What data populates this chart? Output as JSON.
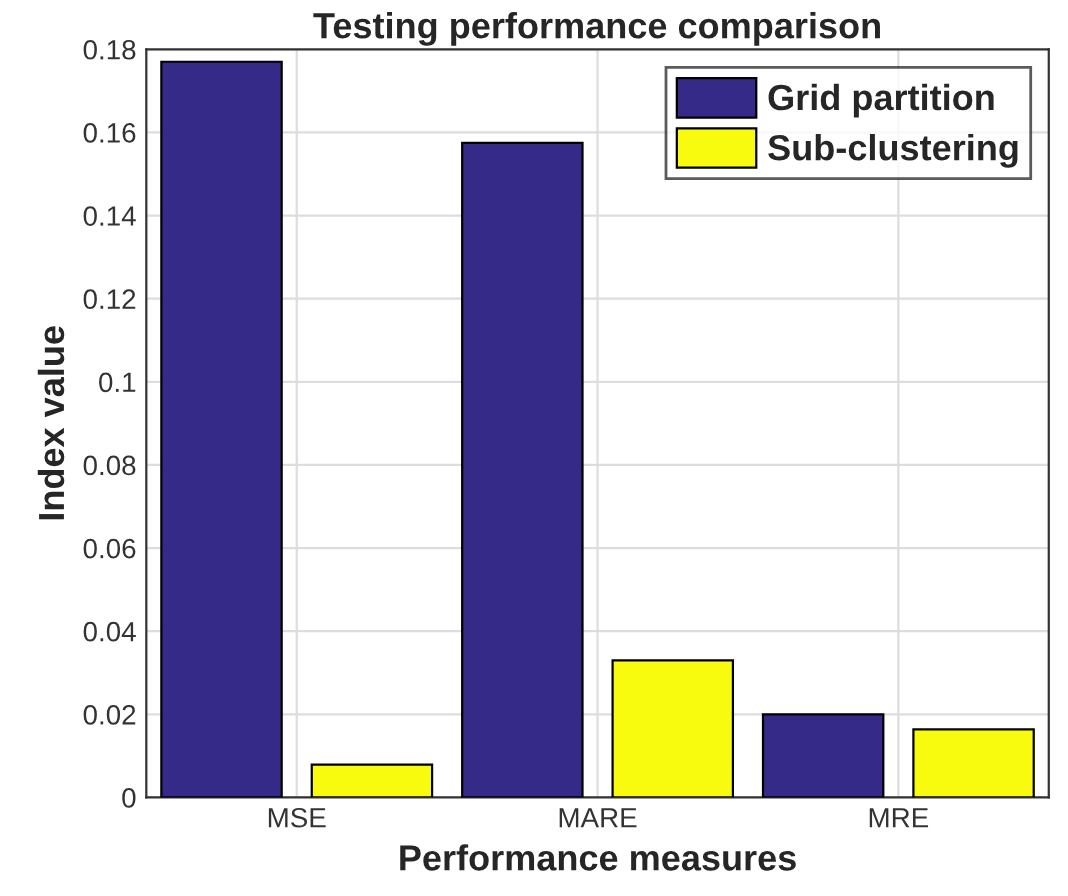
{
  "chart_data": {
    "type": "bar",
    "title": "Testing performance comparison",
    "xlabel": "Performance measures",
    "ylabel": "Index value",
    "categories": [
      "MSE",
      "MARE",
      "MRE"
    ],
    "series": [
      {
        "name": "Grid partition",
        "color": "#352a87",
        "values": [
          0.177,
          0.1575,
          0.02
        ]
      },
      {
        "name": "Sub-clustering",
        "color": "#f9fb0e",
        "values": [
          0.0079,
          0.033,
          0.0164
        ]
      }
    ],
    "ylim": [
      0,
      0.18
    ],
    "yticks": [
      0,
      0.02,
      0.04,
      0.06,
      0.08,
      0.1,
      0.12,
      0.14,
      0.16,
      0.18
    ],
    "grid": true,
    "legend": "top right"
  }
}
